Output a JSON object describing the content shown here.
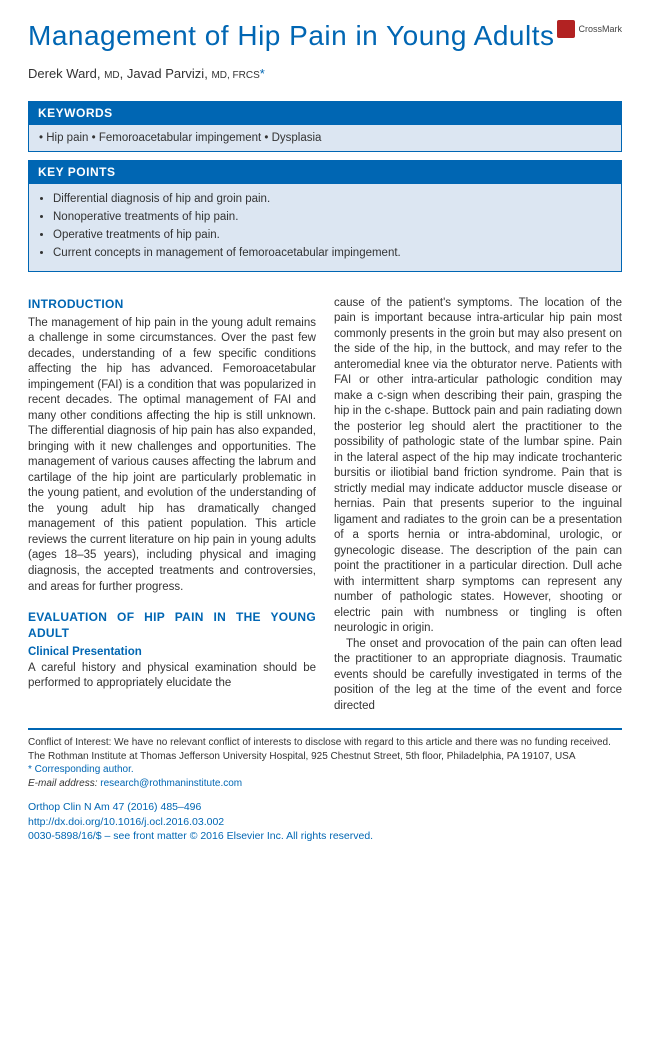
{
  "crossmark": "CrossMark",
  "title": "Management of Hip Pain in Young Adults",
  "authors_html": "Derek Ward, <span style='font-size:10px'>MD</span>, Javad Parvizi, <span style='font-size:10px'>MD, FRCS</span>",
  "keywords_header": "KEYWORDS",
  "keywords_body": "• Hip pain • Femoroacetabular impingement • Dysplasia",
  "keypoints_header": "KEY POINTS",
  "keypoints": [
    "Differential diagnosis of hip and groin pain.",
    "Nonoperative treatments of hip pain.",
    "Operative treatments of hip pain.",
    "Current concepts in management of femoroacetabular impingement."
  ],
  "intro_head": "INTRODUCTION",
  "intro_text": "The management of hip pain in the young adult remains a challenge in some circumstances. Over the past few decades, understanding of a few specific conditions affecting the hip has advanced. Femoroacetabular impingement (FAI) is a condition that was popularized in recent decades. The optimal management of FAI and many other conditions affecting the hip is still unknown. The differential diagnosis of hip pain has also expanded, bringing with it new challenges and opportunities. The management of various causes affecting the labrum and cartilage of the hip joint are particularly problematic in the young patient, and evolution of the understanding of the young adult hip has dramatically changed management of this patient population. This article reviews the current literature on hip pain in young adults (ages 18–35 years), including physical and imaging diagnosis, the accepted treatments and controversies, and areas for further progress.",
  "eval_head": "EVALUATION OF HIP PAIN IN THE YOUNG ADULT",
  "clinical_head": "Clinical Presentation",
  "clinical_text": "A careful history and physical examination should be performed to appropriately elucidate the",
  "col2_p1": "cause of the patient's symptoms. The location of the pain is important because intra-articular hip pain most commonly presents in the groin but may also present on the side of the hip, in the buttock, and may refer to the anteromedial knee via the obturator nerve. Patients with FAI or other intra-articular pathologic condition may make a c-sign when describing their pain, grasping the hip in the c-shape. Buttock pain and pain radiating down the posterior leg should alert the practitioner to the possibility of pathologic state of the lumbar spine. Pain in the lateral aspect of the hip may indicate trochanteric bursitis or iliotibial band friction syndrome. Pain that is strictly medial may indicate adductor muscle disease or hernias. Pain that presents superior to the inguinal ligament and radiates to the groin can be a presentation of a sports hernia or intra-abdominal, urologic, or gynecologic disease. The description of the pain can point the practitioner in a particular direction. Dull ache with intermittent sharp symptoms can represent any number of pathologic states. However, shooting or electric pain with numbness or tingling is often neurologic in origin.",
  "col2_p2": "The onset and provocation of the pain can often lead the practitioner to an appropriate diagnosis. Traumatic events should be carefully investigated in terms of the position of the leg at the time of the event and force directed",
  "footer_conflict": "Conflict of Interest: We have no relevant conflict of interests to disclose with regard to this article and there was no funding received.",
  "footer_address": "The Rothman Institute at Thomas Jefferson University Hospital, 925 Chestnut Street, 5th floor, Philadelphia, PA 19107, USA",
  "footer_corresponding": "* Corresponding author.",
  "footer_email_label": "E-mail address:",
  "footer_email": "research@rothmaninstitute.com",
  "footer_journal": "Orthop Clin N Am 47 (2016) 485–496",
  "footer_doi": "http://dx.doi.org/10.1016/j.ocl.2016.03.002",
  "footer_copyright": "0030-5898/16/$ – see front matter © 2016 Elsevier Inc. All rights reserved."
}
